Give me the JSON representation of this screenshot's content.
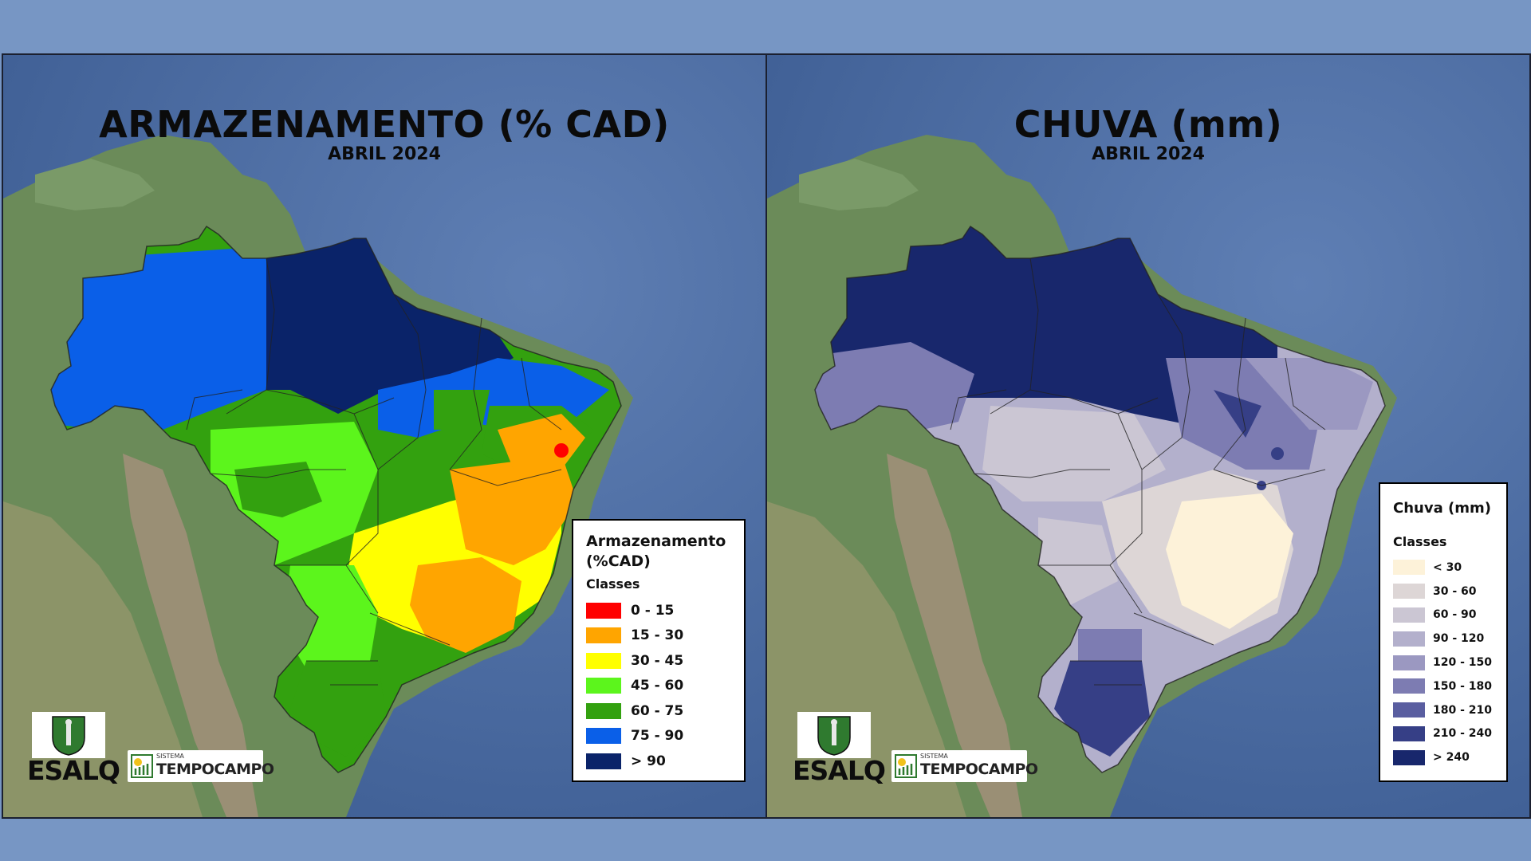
{
  "panels": [
    {
      "title": "ARMAZENAMENTO (% CAD)",
      "subtitle": "ABRIL 2024",
      "legend": {
        "title_line1": "Armazenamento",
        "title_line2": "(%CAD)",
        "classes_label": "Classes",
        "items": [
          {
            "label": "0 - 15",
            "color": "#ff0000"
          },
          {
            "label": "15 - 30",
            "color": "#ffa500"
          },
          {
            "label": "30 - 45",
            "color": "#ffff00"
          },
          {
            "label": "45 - 60",
            "color": "#5cf51c"
          },
          {
            "label": "60 - 75",
            "color": "#33a10f"
          },
          {
            "label": "75 - 90",
            "color": "#0a5fe8"
          },
          {
            "label": "> 90",
            "color": "#0a2369"
          }
        ]
      }
    },
    {
      "title": "CHUVA (mm)",
      "subtitle": "ABRIL 2024",
      "legend": {
        "title": "Chuva (mm)",
        "classes_label": "Classes",
        "items": [
          {
            "label": "< 30",
            "color": "#fdf2d9"
          },
          {
            "label": "30 - 60",
            "color": "#ddd6d6"
          },
          {
            "label": "60 - 90",
            "color": "#cbc6d3"
          },
          {
            "label": "90 - 120",
            "color": "#b3b0cc"
          },
          {
            "label": "120 - 150",
            "color": "#9b98c1"
          },
          {
            "label": "150 - 180",
            "color": "#7d7cb2"
          },
          {
            "label": "180 - 210",
            "color": "#5a5ea0"
          },
          {
            "label": "210 - 240",
            "color": "#363f86"
          },
          {
            "label": "> 240",
            "color": "#18276c"
          }
        ]
      }
    }
  ],
  "logos": {
    "esalq": "ESALQ",
    "tempocampo_small": "SISTEMA",
    "tempocampo_name": "TEMPOCAMPO"
  },
  "colors": {
    "background": "#7796c4",
    "ocean": "#4f6fa6",
    "land": "#6f8f5a"
  }
}
